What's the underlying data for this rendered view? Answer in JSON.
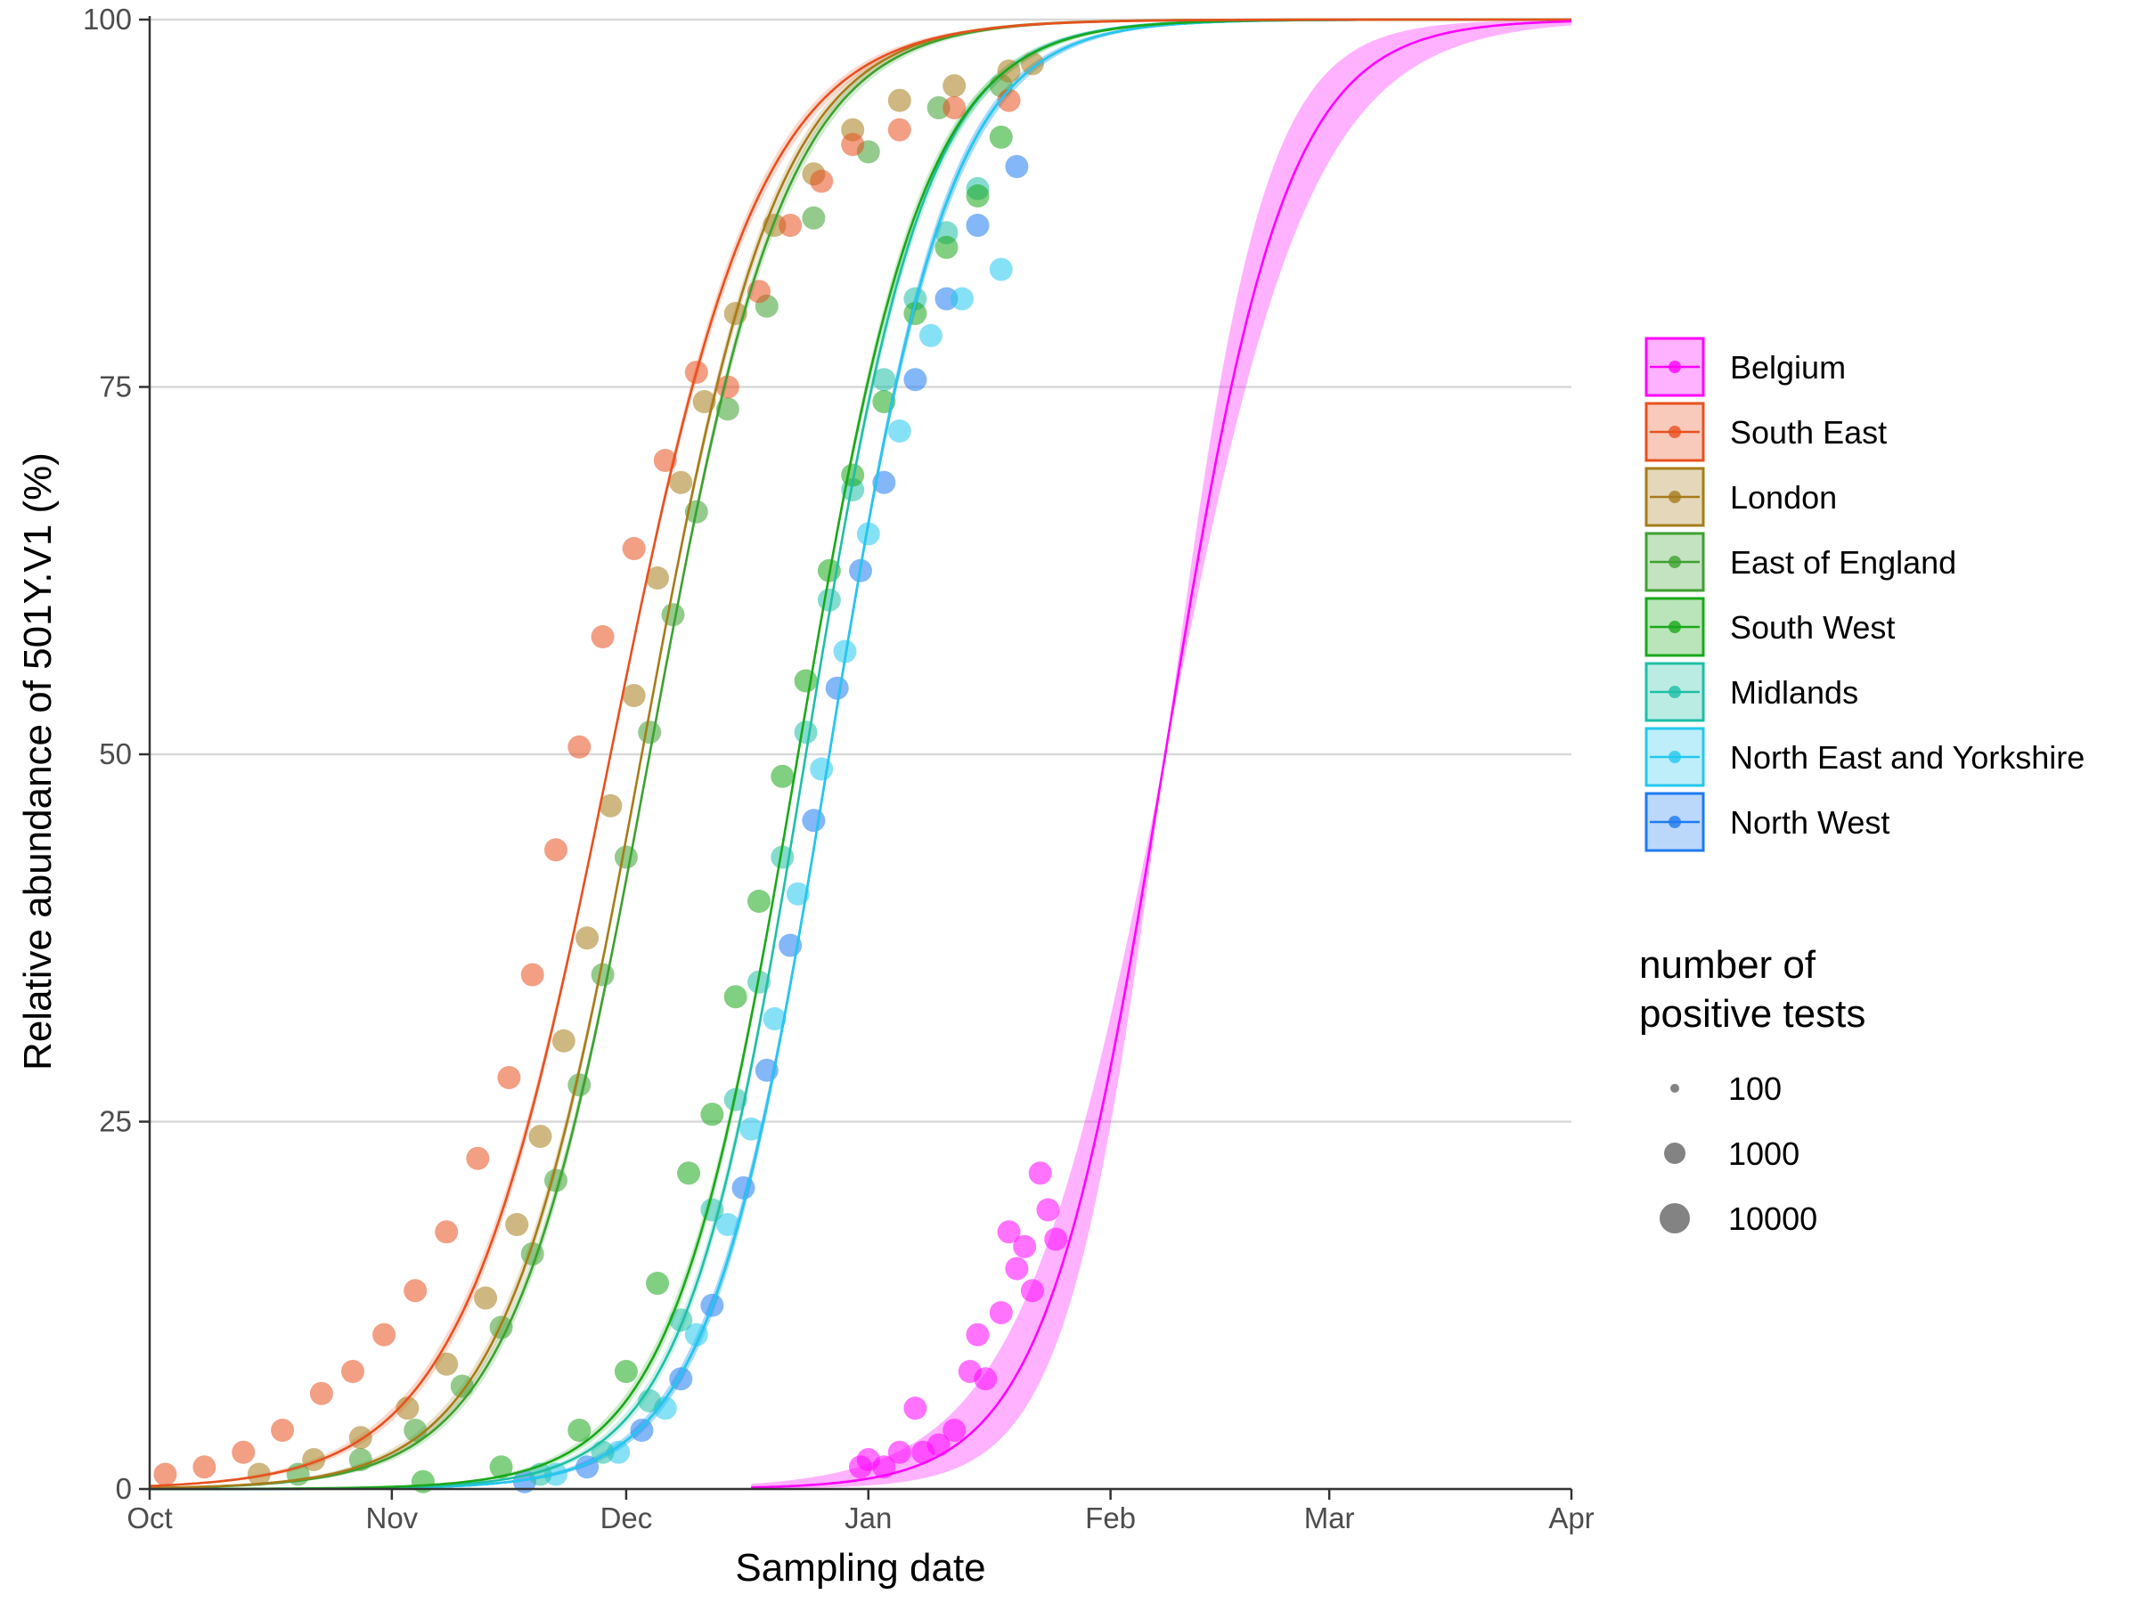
{
  "chart_data": {
    "type": "scatter",
    "title": "",
    "xlabel": "Sampling date",
    "ylabel": "Relative abundance of 501Y.V1 (%)",
    "x_range": [
      "2020-10-01",
      "2021-04-01"
    ],
    "ylim": [
      0,
      100
    ],
    "x_ticks": [
      {
        "date": "2020-10-01",
        "label": "Oct"
      },
      {
        "date": "2020-11-01",
        "label": "Nov"
      },
      {
        "date": "2020-12-01",
        "label": "Dec"
      },
      {
        "date": "2021-01-01",
        "label": "Jan"
      },
      {
        "date": "2021-02-01",
        "label": "Feb"
      },
      {
        "date": "2021-03-01",
        "label": "Mar"
      },
      {
        "date": "2021-04-01",
        "label": "Apr"
      }
    ],
    "y_ticks": [
      {
        "value": 0,
        "label": "0"
      },
      {
        "value": 25,
        "label": "25"
      },
      {
        "value": 50,
        "label": "50"
      },
      {
        "value": 75,
        "label": "75"
      },
      {
        "value": 100,
        "label": "100"
      }
    ],
    "grid": "horizontal major gridlines",
    "legend_position": "right",
    "series": [
      {
        "name": "Belgium",
        "color": "#FF00FF",
        "fit": {
          "midpoint": "2021-02-08",
          "growth_rate_per_day": 0.13,
          "band": "wide"
        },
        "fit_start": "2020-12-17",
        "points": [
          {
            "date": "2020-12-31",
            "value": 1.5
          },
          {
            "date": "2021-01-01",
            "value": 2.0
          },
          {
            "date": "2021-01-03",
            "value": 1.5
          },
          {
            "date": "2021-01-05",
            "value": 2.5
          },
          {
            "date": "2021-01-07",
            "value": 5.5
          },
          {
            "date": "2021-01-08",
            "value": 2.5
          },
          {
            "date": "2021-01-10",
            "value": 3.0
          },
          {
            "date": "2021-01-12",
            "value": 4.0
          },
          {
            "date": "2021-01-14",
            "value": 8.0
          },
          {
            "date": "2021-01-15",
            "value": 10.5
          },
          {
            "date": "2021-01-16",
            "value": 7.5
          },
          {
            "date": "2021-01-18",
            "value": 12.0
          },
          {
            "date": "2021-01-19",
            "value": 17.5
          },
          {
            "date": "2021-01-20",
            "value": 15.0
          },
          {
            "date": "2021-01-21",
            "value": 16.5
          },
          {
            "date": "2021-01-22",
            "value": 13.5
          },
          {
            "date": "2021-01-23",
            "value": 21.5
          },
          {
            "date": "2021-01-24",
            "value": 19.0
          },
          {
            "date": "2021-01-25",
            "value": 17.0
          }
        ]
      },
      {
        "name": "South East",
        "color": "#E8501F",
        "fit": {
          "midpoint": "2020-11-29",
          "growth_rate_per_day": 0.105,
          "band": "narrow"
        },
        "fit_start": "2020-10-01",
        "points": [
          {
            "date": "2020-10-03",
            "value": 1.0
          },
          {
            "date": "2020-10-08",
            "value": 1.5
          },
          {
            "date": "2020-10-13",
            "value": 2.5
          },
          {
            "date": "2020-10-18",
            "value": 4.0
          },
          {
            "date": "2020-10-23",
            "value": 6.5
          },
          {
            "date": "2020-10-27",
            "value": 8.0
          },
          {
            "date": "2020-10-31",
            "value": 10.5
          },
          {
            "date": "2020-11-04",
            "value": 13.5
          },
          {
            "date": "2020-11-08",
            "value": 17.5
          },
          {
            "date": "2020-11-12",
            "value": 22.5
          },
          {
            "date": "2020-11-16",
            "value": 28.0
          },
          {
            "date": "2020-11-19",
            "value": 35.0
          },
          {
            "date": "2020-11-22",
            "value": 43.5
          },
          {
            "date": "2020-11-25",
            "value": 50.5
          },
          {
            "date": "2020-11-28",
            "value": 58.0
          },
          {
            "date": "2020-12-02",
            "value": 64.0
          },
          {
            "date": "2020-12-06",
            "value": 70.0
          },
          {
            "date": "2020-12-10",
            "value": 76.0
          },
          {
            "date": "2020-12-14",
            "value": 75.0
          },
          {
            "date": "2020-12-18",
            "value": 81.5
          },
          {
            "date": "2020-12-22",
            "value": 86.0
          },
          {
            "date": "2020-12-26",
            "value": 89.0
          },
          {
            "date": "2020-12-30",
            "value": 91.5
          },
          {
            "date": "2021-01-05",
            "value": 92.5
          },
          {
            "date": "2021-01-12",
            "value": 94.0
          },
          {
            "date": "2021-01-19",
            "value": 94.5
          }
        ]
      },
      {
        "name": "London",
        "color": "#A67C1A",
        "fit": {
          "midpoint": "2020-12-03",
          "growth_rate_per_day": 0.115,
          "band": "narrow"
        },
        "fit_start": "2020-10-01",
        "points": [
          {
            "date": "2020-10-15",
            "value": 1.0
          },
          {
            "date": "2020-10-22",
            "value": 2.0
          },
          {
            "date": "2020-10-28",
            "value": 3.5
          },
          {
            "date": "2020-11-03",
            "value": 5.5
          },
          {
            "date": "2020-11-08",
            "value": 8.5
          },
          {
            "date": "2020-11-13",
            "value": 13.0
          },
          {
            "date": "2020-11-17",
            "value": 18.0
          },
          {
            "date": "2020-11-20",
            "value": 24.0
          },
          {
            "date": "2020-11-23",
            "value": 30.5
          },
          {
            "date": "2020-11-26",
            "value": 37.5
          },
          {
            "date": "2020-11-29",
            "value": 46.5
          },
          {
            "date": "2020-12-02",
            "value": 54.0
          },
          {
            "date": "2020-12-05",
            "value": 62.0
          },
          {
            "date": "2020-12-08",
            "value": 68.5
          },
          {
            "date": "2020-12-11",
            "value": 74.0
          },
          {
            "date": "2020-12-15",
            "value": 80.0
          },
          {
            "date": "2020-12-20",
            "value": 86.0
          },
          {
            "date": "2020-12-25",
            "value": 89.5
          },
          {
            "date": "2020-12-30",
            "value": 92.5
          },
          {
            "date": "2021-01-05",
            "value": 94.5
          },
          {
            "date": "2021-01-12",
            "value": 95.5
          },
          {
            "date": "2021-01-19",
            "value": 96.5
          },
          {
            "date": "2021-01-22",
            "value": 97.0
          }
        ]
      },
      {
        "name": "East of England",
        "color": "#3DA130",
        "fit": {
          "midpoint": "2020-12-04",
          "growth_rate_per_day": 0.115,
          "band": "narrow"
        },
        "fit_start": "2020-10-01",
        "points": [
          {
            "date": "2020-10-20",
            "value": 1.0
          },
          {
            "date": "2020-10-28",
            "value": 2.0
          },
          {
            "date": "2020-11-04",
            "value": 4.0
          },
          {
            "date": "2020-11-10",
            "value": 7.0
          },
          {
            "date": "2020-11-15",
            "value": 11.0
          },
          {
            "date": "2020-11-19",
            "value": 16.0
          },
          {
            "date": "2020-11-22",
            "value": 21.0
          },
          {
            "date": "2020-11-25",
            "value": 27.5
          },
          {
            "date": "2020-11-28",
            "value": 35.0
          },
          {
            "date": "2020-12-01",
            "value": 43.0
          },
          {
            "date": "2020-12-04",
            "value": 51.5
          },
          {
            "date": "2020-12-07",
            "value": 59.5
          },
          {
            "date": "2020-12-10",
            "value": 66.5
          },
          {
            "date": "2020-12-14",
            "value": 73.5
          },
          {
            "date": "2020-12-19",
            "value": 80.5
          },
          {
            "date": "2020-12-25",
            "value": 86.5
          },
          {
            "date": "2021-01-01",
            "value": 91.0
          },
          {
            "date": "2021-01-10",
            "value": 94.0
          },
          {
            "date": "2021-01-18",
            "value": 95.5
          }
        ]
      },
      {
        "name": "South West",
        "color": "#1AA81A",
        "fit": {
          "midpoint": "2020-12-23",
          "growth_rate_per_day": 0.125,
          "band": "narrow"
        },
        "fit_start": "2020-10-01",
        "points": [
          {
            "date": "2020-11-05",
            "value": 0.5
          },
          {
            "date": "2020-11-15",
            "value": 1.5
          },
          {
            "date": "2020-11-25",
            "value": 4.0
          },
          {
            "date": "2020-12-01",
            "value": 8.0
          },
          {
            "date": "2020-12-05",
            "value": 14.0
          },
          {
            "date": "2020-12-09",
            "value": 21.5
          },
          {
            "date": "2020-12-12",
            "value": 25.5
          },
          {
            "date": "2020-12-15",
            "value": 33.5
          },
          {
            "date": "2020-12-18",
            "value": 40.0
          },
          {
            "date": "2020-12-21",
            "value": 48.5
          },
          {
            "date": "2020-12-24",
            "value": 55.0
          },
          {
            "date": "2020-12-27",
            "value": 62.5
          },
          {
            "date": "2020-12-30",
            "value": 69.0
          },
          {
            "date": "2021-01-03",
            "value": 74.0
          },
          {
            "date": "2021-01-07",
            "value": 80.0
          },
          {
            "date": "2021-01-11",
            "value": 84.5
          },
          {
            "date": "2021-01-15",
            "value": 88.0
          },
          {
            "date": "2021-01-18",
            "value": 92.0
          }
        ]
      },
      {
        "name": "Midlands",
        "color": "#1FBFA6",
        "fit": {
          "midpoint": "2020-12-24",
          "growth_rate_per_day": 0.13,
          "band": "narrow"
        },
        "fit_start": "2020-10-01",
        "points": [
          {
            "date": "2020-11-20",
            "value": 1.0
          },
          {
            "date": "2020-11-28",
            "value": 2.5
          },
          {
            "date": "2020-12-04",
            "value": 6.0
          },
          {
            "date": "2020-12-08",
            "value": 11.5
          },
          {
            "date": "2020-12-12",
            "value": 19.0
          },
          {
            "date": "2020-12-15",
            "value": 26.5
          },
          {
            "date": "2020-12-18",
            "value": 34.5
          },
          {
            "date": "2020-12-21",
            "value": 43.0
          },
          {
            "date": "2020-12-24",
            "value": 51.5
          },
          {
            "date": "2020-12-27",
            "value": 60.5
          },
          {
            "date": "2020-12-30",
            "value": 68.0
          },
          {
            "date": "2021-01-03",
            "value": 75.5
          },
          {
            "date": "2021-01-07",
            "value": 81.0
          },
          {
            "date": "2021-01-11",
            "value": 85.5
          },
          {
            "date": "2021-01-15",
            "value": 88.5
          }
        ]
      },
      {
        "name": "North East and Yorkshire",
        "color": "#24C8EE",
        "fit": {
          "midpoint": "2020-12-27",
          "growth_rate_per_day": 0.13,
          "band": "narrow"
        },
        "fit_start": "2020-10-01",
        "points": [
          {
            "date": "2020-11-22",
            "value": 1.0
          },
          {
            "date": "2020-11-30",
            "value": 2.5
          },
          {
            "date": "2020-12-06",
            "value": 5.5
          },
          {
            "date": "2020-12-10",
            "value": 10.5
          },
          {
            "date": "2020-12-14",
            "value": 18.0
          },
          {
            "date": "2020-12-17",
            "value": 24.5
          },
          {
            "date": "2020-12-20",
            "value": 32.0
          },
          {
            "date": "2020-12-23",
            "value": 40.5
          },
          {
            "date": "2020-12-26",
            "value": 49.0
          },
          {
            "date": "2020-12-29",
            "value": 57.0
          },
          {
            "date": "2021-01-01",
            "value": 65.0
          },
          {
            "date": "2021-01-05",
            "value": 72.0
          },
          {
            "date": "2021-01-09",
            "value": 78.5
          },
          {
            "date": "2021-01-13",
            "value": 81.0
          },
          {
            "date": "2021-01-18",
            "value": 83.0
          }
        ]
      },
      {
        "name": "North West",
        "color": "#1E7BF0",
        "fit": {
          "midpoint": "2020-12-27",
          "growth_rate_per_day": 0.13,
          "band": "narrow"
        },
        "fit_start": "2020-10-01",
        "points": [
          {
            "date": "2020-11-18",
            "value": 0.5
          },
          {
            "date": "2020-11-26",
            "value": 1.5
          },
          {
            "date": "2020-12-03",
            "value": 4.0
          },
          {
            "date": "2020-12-08",
            "value": 7.5
          },
          {
            "date": "2020-12-12",
            "value": 12.5
          },
          {
            "date": "2020-12-16",
            "value": 20.5
          },
          {
            "date": "2020-12-19",
            "value": 28.5
          },
          {
            "date": "2020-12-22",
            "value": 37.0
          },
          {
            "date": "2020-12-25",
            "value": 45.5
          },
          {
            "date": "2020-12-28",
            "value": 54.5
          },
          {
            "date": "2020-12-31",
            "value": 62.5
          },
          {
            "date": "2021-01-03",
            "value": 68.5
          },
          {
            "date": "2021-01-07",
            "value": 75.5
          },
          {
            "date": "2021-01-11",
            "value": 81.0
          },
          {
            "date": "2021-01-15",
            "value": 86.0
          },
          {
            "date": "2021-01-20",
            "value": 90.0
          }
        ]
      }
    ],
    "size_legend": {
      "title": [
        "number of",
        "positive tests"
      ],
      "entries": [
        {
          "label": "100",
          "value": 100
        },
        {
          "label": "1000",
          "value": 1000
        },
        {
          "label": "10000",
          "value": 10000
        }
      ]
    }
  }
}
